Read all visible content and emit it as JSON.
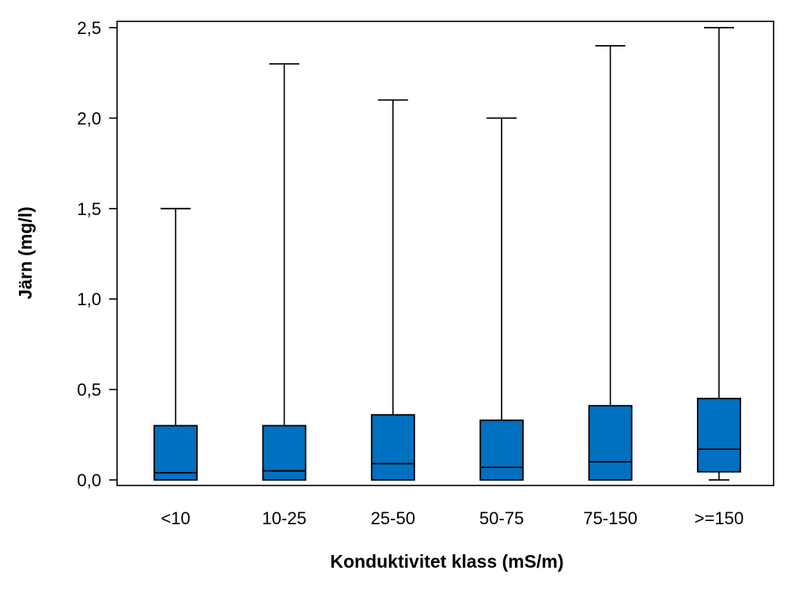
{
  "chart_data": {
    "type": "boxplot",
    "title": "",
    "xlabel": "Konduktivitet klass (mS/m)",
    "ylabel": "Järn (mg/l)",
    "ylim": [
      0,
      2.5
    ],
    "yticks": [
      "0,0",
      "0,5",
      "1,0",
      "1,5",
      "2,0",
      "2,5"
    ],
    "ytick_values": [
      0,
      0.5,
      1.0,
      1.5,
      2.0,
      2.5
    ],
    "categories": [
      "<10",
      "10-25",
      "25-50",
      "50-75",
      "75-150",
      ">=150"
    ],
    "boxes": [
      {
        "category": "<10",
        "min": 0.0,
        "q1": 0.0,
        "median": 0.04,
        "q3": 0.3,
        "max": 1.5
      },
      {
        "category": "10-25",
        "min": 0.0,
        "q1": 0.0,
        "median": 0.05,
        "q3": 0.3,
        "max": 2.3
      },
      {
        "category": "25-50",
        "min": 0.0,
        "q1": 0.0,
        "median": 0.09,
        "q3": 0.36,
        "max": 2.1
      },
      {
        "category": "50-75",
        "min": 0.0,
        "q1": 0.0,
        "median": 0.07,
        "q3": 0.33,
        "max": 2.0
      },
      {
        "category": "75-150",
        "min": 0.0,
        "q1": 0.0,
        "median": 0.1,
        "q3": 0.41,
        "max": 2.4
      },
      {
        "category": ">=150",
        "min": 0.0,
        "q1": 0.045,
        "median": 0.17,
        "q3": 0.45,
        "max": 2.5
      }
    ],
    "box_color": "#0070C0",
    "grid": false,
    "legend": "none"
  }
}
